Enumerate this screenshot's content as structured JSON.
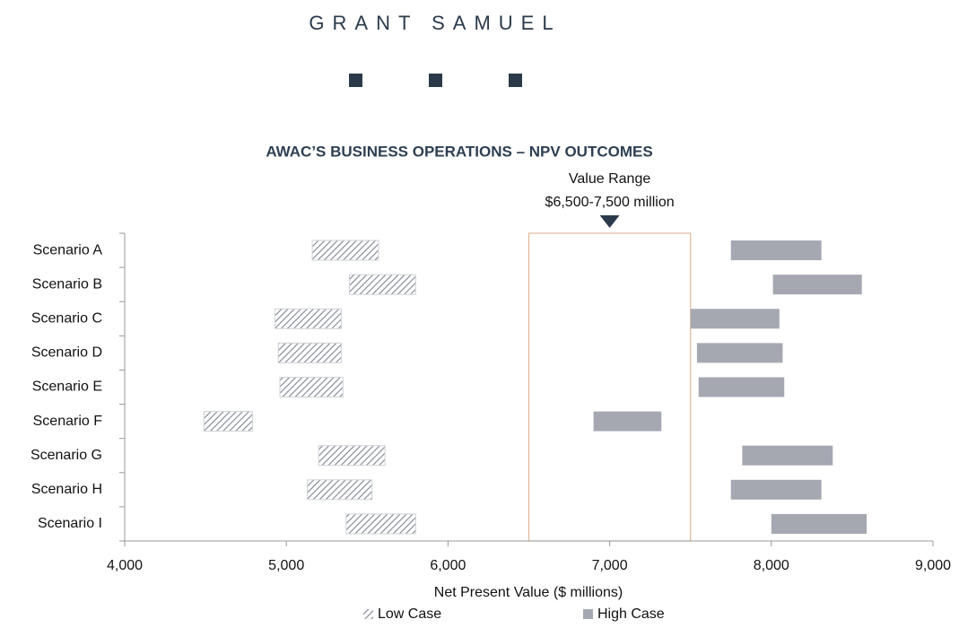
{
  "header": {
    "logo": "GRANT SAMUEL"
  },
  "chart_data": {
    "type": "range_bar",
    "title": "AWAC’S BUSINESS OPERATIONS – NPV OUTCOMES",
    "x_label": "Net Present Value ($ millions)",
    "categories": [
      "Scenario A",
      "Scenario B",
      "Scenario C",
      "Scenario D",
      "Scenario E",
      "Scenario F",
      "Scenario G",
      "Scenario H",
      "Scenario I"
    ],
    "series": [
      {
        "name": "Low Case",
        "color": "#7f8591",
        "hatch": true,
        "low": [
          5160,
          5390,
          4930,
          4950,
          4960,
          4490,
          5200,
          5130,
          5370
        ],
        "high": [
          5570,
          5800,
          5340,
          5340,
          5350,
          4790,
          5610,
          5530,
          5800
        ]
      },
      {
        "name": "High Case",
        "color": "#a5a8b1",
        "hatch": false,
        "low": [
          7750,
          8010,
          7500,
          7540,
          7550,
          6900,
          7820,
          7750,
          8000
        ],
        "high": [
          8310,
          8560,
          8050,
          8070,
          8080,
          7320,
          8380,
          8310,
          8590
        ]
      }
    ],
    "annotation": {
      "title": "Value Range",
      "text": "$6,500-7,500 million",
      "range": [
        6500,
        7500
      ],
      "color": "#e0b89a"
    },
    "xlim": [
      4000,
      9000
    ],
    "xticks": [
      {
        "value": 4000,
        "label": "4,000"
      },
      {
        "value": 5000,
        "label": "5,000"
      },
      {
        "value": 6000,
        "label": "6,000"
      },
      {
        "value": 7000,
        "label": "7,000"
      },
      {
        "value": 8000,
        "label": "8,000"
      },
      {
        "value": 9000,
        "label": "9,000"
      }
    ]
  }
}
